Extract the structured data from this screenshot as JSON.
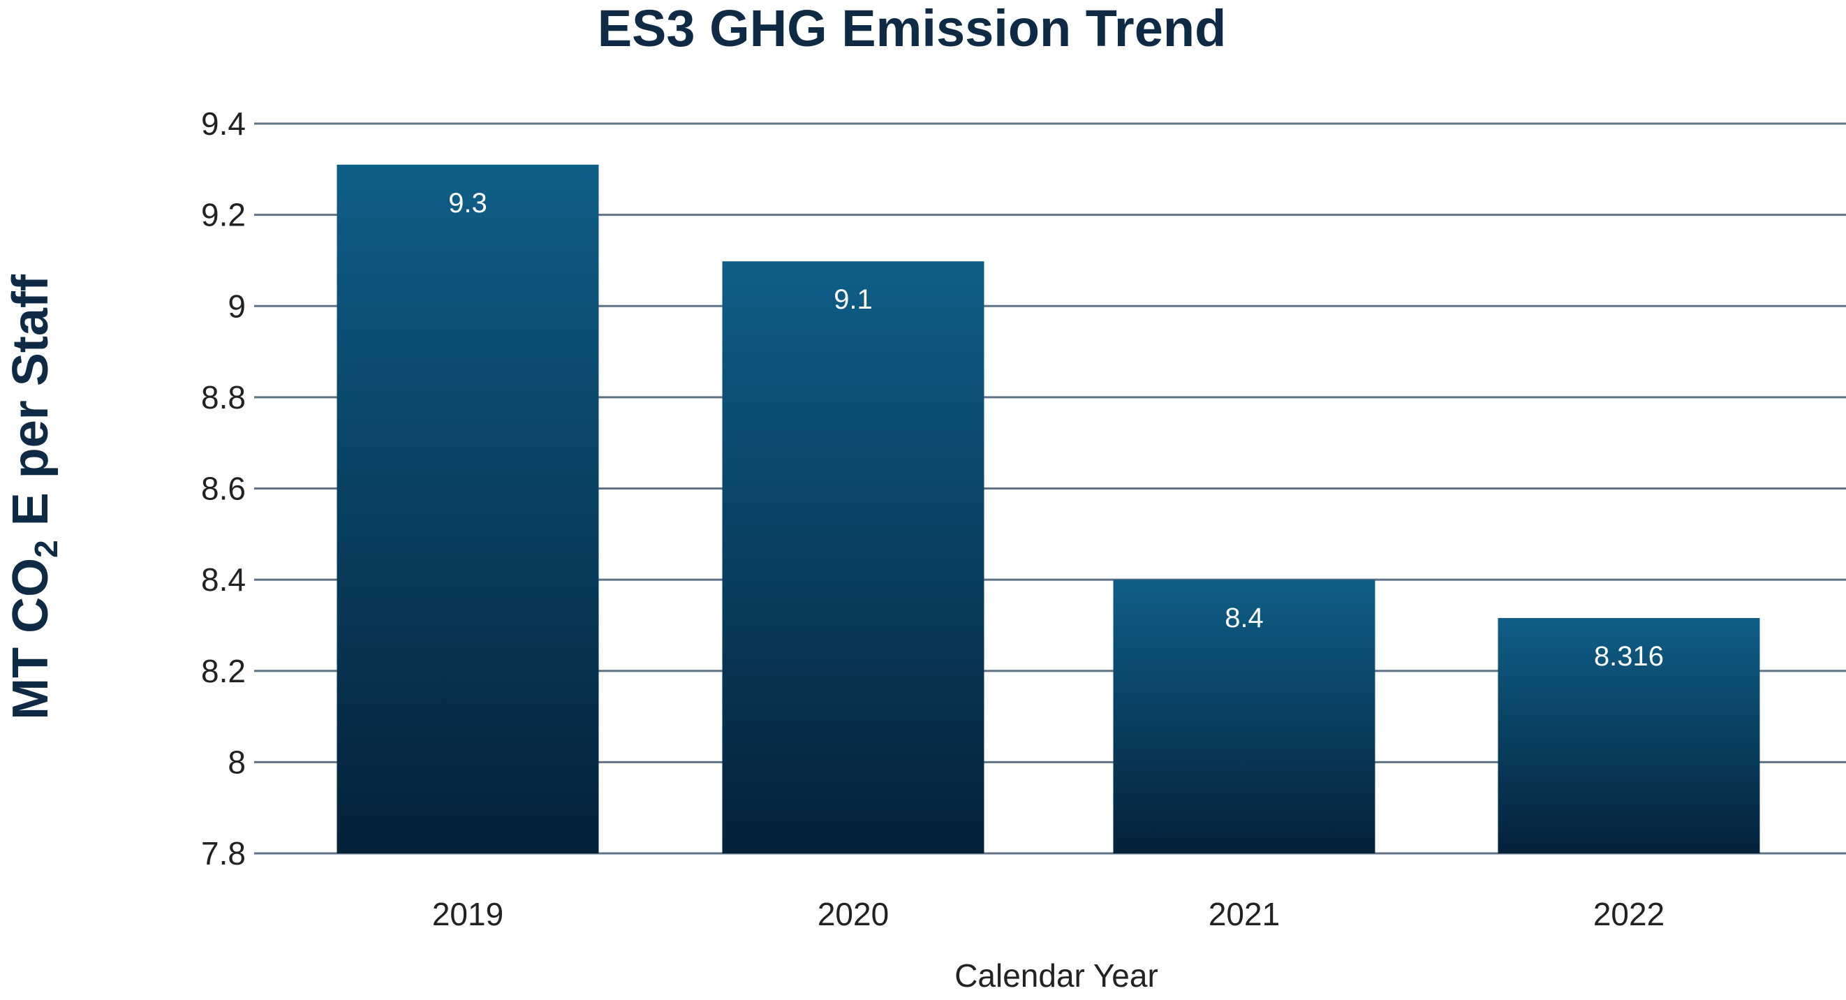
{
  "chart_data": {
    "type": "bar",
    "title": "ES3 GHG Emission Trend",
    "xlabel": "Calendar Year",
    "ylabel": {
      "prefix": "MT CO",
      "subscript": "2",
      "suffix": " E per Staff"
    },
    "categories": [
      "2019",
      "2020",
      "2021",
      "2022"
    ],
    "values": [
      9.31,
      9.098,
      8.4,
      8.316
    ],
    "data_labels": [
      "9.3",
      "9.1",
      "8.4",
      "8.316"
    ],
    "ylim": [
      7.8,
      9.4
    ],
    "yticks": [
      "9.4",
      "9.2",
      "9",
      "8.8",
      "8.6",
      "8.4",
      "8.2",
      "8",
      "7.8"
    ],
    "grid": true,
    "legend": "none",
    "colors": {
      "bar_top": "#0f5e87",
      "bar_bottom": "#04213a",
      "grid": "#5f7286",
      "title": "#0f2a44"
    }
  }
}
